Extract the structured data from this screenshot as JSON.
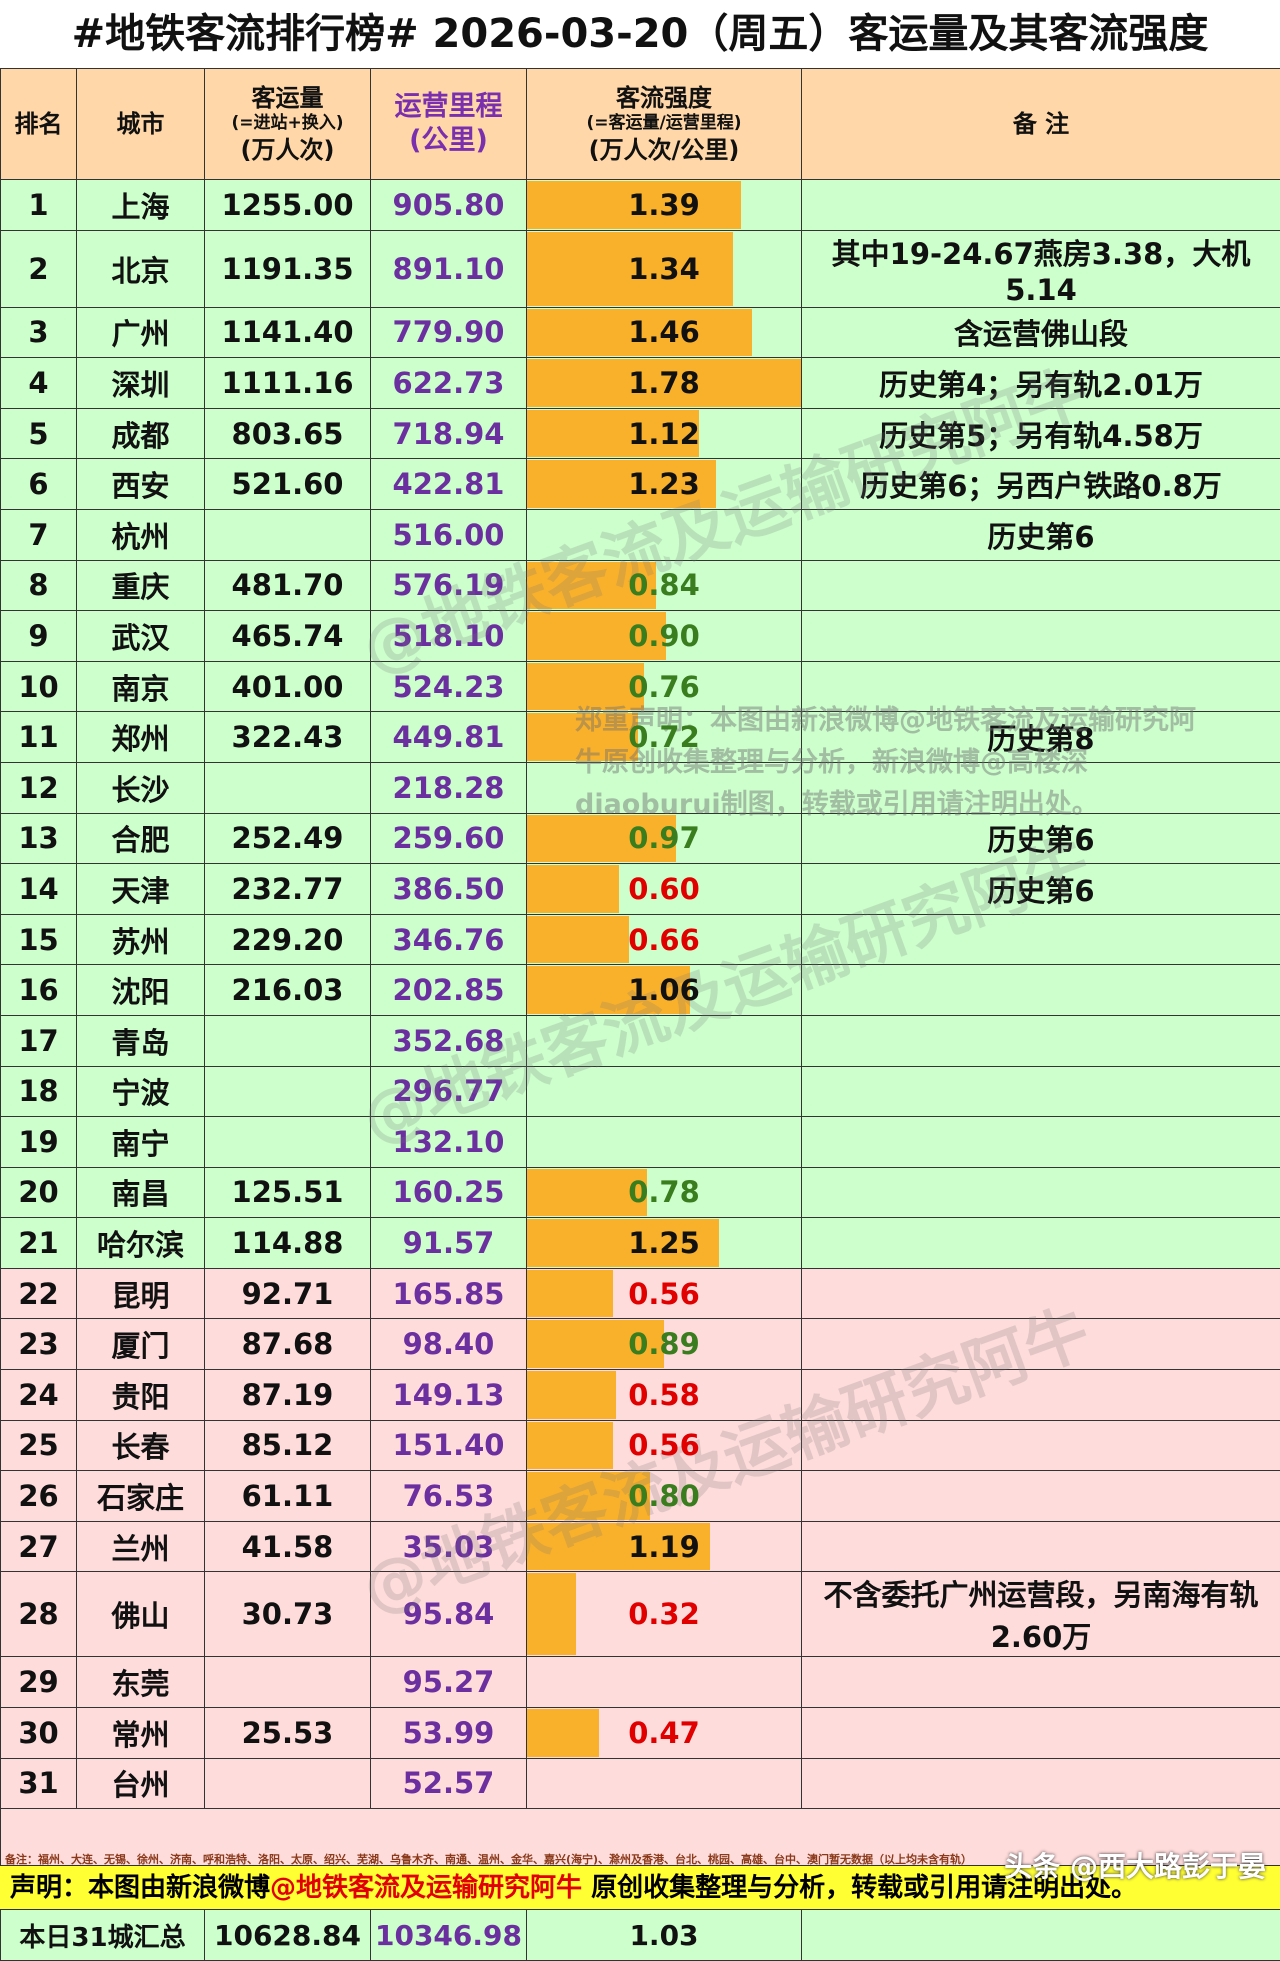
{
  "title": "#地铁客流排行榜# 2026-03-20（周五）客运量及其客流强度",
  "headers": {
    "rank": "排名",
    "city": "城市",
    "ridership": [
      "客运量",
      "(=进站+换入)",
      "(万人次)"
    ],
    "km": [
      "运营里程",
      "(公里)"
    ],
    "intensity": [
      "客流强度",
      "(=客运量/运营里程)",
      "(万人次/公里)"
    ],
    "note": "备 注"
  },
  "rows": [
    {
      "rank": "1",
      "city": "上海",
      "ridership": "1255.00",
      "km": "905.80",
      "intensity": "1.39",
      "iv": 1.39,
      "level": "high",
      "note": "",
      "band": "green"
    },
    {
      "rank": "2",
      "city": "北京",
      "ridership": "1191.35",
      "km": "891.10",
      "intensity": "1.34",
      "iv": 1.34,
      "level": "high",
      "note": "其中19-24.67燕房3.38，大机5.14",
      "band": "green"
    },
    {
      "rank": "3",
      "city": "广州",
      "ridership": "1141.40",
      "km": "779.90",
      "intensity": "1.46",
      "iv": 1.46,
      "level": "high",
      "note": "含运营佛山段",
      "band": "green"
    },
    {
      "rank": "4",
      "city": "深圳",
      "ridership": "1111.16",
      "km": "622.73",
      "intensity": "1.78",
      "iv": 1.78,
      "level": "high",
      "note": "历史第4；另有轨2.01万",
      "band": "green"
    },
    {
      "rank": "5",
      "city": "成都",
      "ridership": "803.65",
      "km": "718.94",
      "intensity": "1.12",
      "iv": 1.12,
      "level": "high",
      "note": "历史第5；另有轨4.58万",
      "band": "green"
    },
    {
      "rank": "6",
      "city": "西安",
      "ridership": "521.60",
      "km": "422.81",
      "intensity": "1.23",
      "iv": 1.23,
      "level": "high",
      "note": "历史第6；另西户铁路0.8万",
      "band": "green"
    },
    {
      "rank": "7",
      "city": "杭州",
      "ridership": "",
      "km": "516.00",
      "intensity": "",
      "iv": null,
      "level": "none",
      "note": "历史第6",
      "band": "green"
    },
    {
      "rank": "8",
      "city": "重庆",
      "ridership": "481.70",
      "km": "576.19",
      "intensity": "0.84",
      "iv": 0.84,
      "level": "mid",
      "note": "",
      "band": "green"
    },
    {
      "rank": "9",
      "city": "武汉",
      "ridership": "465.74",
      "km": "518.10",
      "intensity": "0.90",
      "iv": 0.9,
      "level": "mid",
      "note": "",
      "band": "green"
    },
    {
      "rank": "10",
      "city": "南京",
      "ridership": "401.00",
      "km": "524.23",
      "intensity": "0.76",
      "iv": 0.76,
      "level": "mid",
      "note": "",
      "band": "green"
    },
    {
      "rank": "11",
      "city": "郑州",
      "ridership": "322.43",
      "km": "449.81",
      "intensity": "0.72",
      "iv": 0.72,
      "level": "mid",
      "note": "历史第8",
      "band": "green"
    },
    {
      "rank": "12",
      "city": "长沙",
      "ridership": "",
      "km": "218.28",
      "intensity": "",
      "iv": null,
      "level": "none",
      "note": "",
      "band": "green"
    },
    {
      "rank": "13",
      "city": "合肥",
      "ridership": "252.49",
      "km": "259.60",
      "intensity": "0.97",
      "iv": 0.97,
      "level": "mid",
      "note": "历史第6",
      "band": "green"
    },
    {
      "rank": "14",
      "city": "天津",
      "ridership": "232.77",
      "km": "386.50",
      "intensity": "0.60",
      "iv": 0.6,
      "level": "low",
      "note": "历史第6",
      "band": "green"
    },
    {
      "rank": "15",
      "city": "苏州",
      "ridership": "229.20",
      "km": "346.76",
      "intensity": "0.66",
      "iv": 0.66,
      "level": "low",
      "note": "",
      "band": "green"
    },
    {
      "rank": "16",
      "city": "沈阳",
      "ridership": "216.03",
      "km": "202.85",
      "intensity": "1.06",
      "iv": 1.06,
      "level": "high",
      "note": "",
      "band": "green"
    },
    {
      "rank": "17",
      "city": "青岛",
      "ridership": "",
      "km": "352.68",
      "intensity": "",
      "iv": null,
      "level": "none",
      "note": "",
      "band": "green"
    },
    {
      "rank": "18",
      "city": "宁波",
      "ridership": "",
      "km": "296.77",
      "intensity": "",
      "iv": null,
      "level": "none",
      "note": "",
      "band": "green"
    },
    {
      "rank": "19",
      "city": "南宁",
      "ridership": "",
      "km": "132.10",
      "intensity": "",
      "iv": null,
      "level": "none",
      "note": "",
      "band": "green"
    },
    {
      "rank": "20",
      "city": "南昌",
      "ridership": "125.51",
      "km": "160.25",
      "intensity": "0.78",
      "iv": 0.78,
      "level": "mid",
      "note": "",
      "band": "green"
    },
    {
      "rank": "21",
      "city": "哈尔滨",
      "ridership": "114.88",
      "km": "91.57",
      "intensity": "1.25",
      "iv": 1.25,
      "level": "high",
      "note": "",
      "band": "green"
    },
    {
      "rank": "22",
      "city": "昆明",
      "ridership": "92.71",
      "km": "165.85",
      "intensity": "0.56",
      "iv": 0.56,
      "level": "low",
      "note": "",
      "band": "pink"
    },
    {
      "rank": "23",
      "city": "厦门",
      "ridership": "87.68",
      "km": "98.40",
      "intensity": "0.89",
      "iv": 0.89,
      "level": "mid",
      "note": "",
      "band": "pink"
    },
    {
      "rank": "24",
      "city": "贵阳",
      "ridership": "87.19",
      "km": "149.13",
      "intensity": "0.58",
      "iv": 0.58,
      "level": "low",
      "note": "",
      "band": "pink"
    },
    {
      "rank": "25",
      "city": "长春",
      "ridership": "85.12",
      "km": "151.40",
      "intensity": "0.56",
      "iv": 0.56,
      "level": "low",
      "note": "",
      "band": "pink"
    },
    {
      "rank": "26",
      "city": "石家庄",
      "ridership": "61.11",
      "km": "76.53",
      "intensity": "0.80",
      "iv": 0.8,
      "level": "mid",
      "note": "",
      "band": "pink"
    },
    {
      "rank": "27",
      "city": "兰州",
      "ridership": "41.58",
      "km": "35.03",
      "intensity": "1.19",
      "iv": 1.19,
      "level": "high",
      "note": "",
      "band": "pink"
    },
    {
      "rank": "28",
      "city": "佛山",
      "ridership": "30.73",
      "km": "95.84",
      "intensity": "0.32",
      "iv": 0.32,
      "level": "low",
      "note": "不含委托广州运营段，另南海有轨2.60万",
      "band": "pink"
    },
    {
      "rank": "29",
      "city": "东莞",
      "ridership": "",
      "km": "95.27",
      "intensity": "",
      "iv": null,
      "level": "none",
      "note": "",
      "band": "pink"
    },
    {
      "rank": "30",
      "city": "常州",
      "ridership": "25.53",
      "km": "53.99",
      "intensity": "0.47",
      "iv": 0.47,
      "level": "low",
      "note": "",
      "band": "pink"
    },
    {
      "rank": "31",
      "city": "台州",
      "ridership": "",
      "km": "52.57",
      "intensity": "",
      "iv": null,
      "level": "none",
      "note": "",
      "band": "pink"
    }
  ],
  "intensity_scale_max": 1.78,
  "footnote": "备注：福州、大连、无锡、徐州、济南、呼和浩特、洛阳、太原、绍兴、芜湖、乌鲁木齐、南通、温州、金华、嘉兴(海宁)、滁州及香港、台北、桃园、高雄、台中、澳门暂无数据（以上均未含有轨）",
  "summary": {
    "label": "本日31城汇总",
    "ridership": "10628.84",
    "km": "10346.98",
    "intensity": "1.03"
  },
  "declaration": {
    "prefix": "声明：本图由新浪微博",
    "account": "@地铁客流及运输研究阿牛",
    "suffix": "原创收集整理与分析，转载或引用请注明出处。"
  },
  "watermark_text": "@地铁客流及运输研究阿牛",
  "copyright_text": "郑重声明：本图由新浪微博@地铁客流及运输研究阿牛原创收集整理与分析，新浪微博@高楼深diaoburui制图，转载或引用请注明出处。",
  "platform_mark": "头条 @西大路彭于晏",
  "colors": {
    "header_bg": "#ffd7a8",
    "green_band": "#ccffcc",
    "pink_band": "#ffdcdc",
    "bar": "#f9b12b",
    "km_text": "#6b2fa0",
    "low_text": "#e00000",
    "mid_text": "#3a7d1e",
    "declaration_bg": "#ffff33"
  }
}
